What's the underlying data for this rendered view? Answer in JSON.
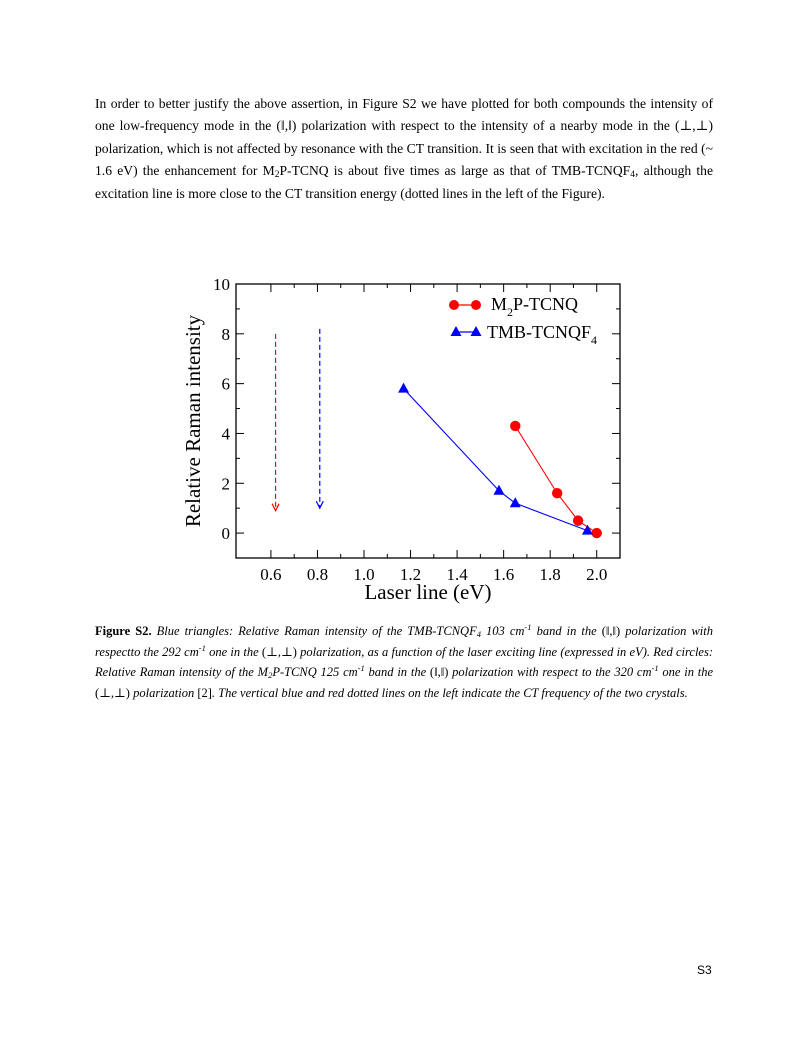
{
  "paragraph": {
    "p1": "In order to better justify the above assertion, in Figure S2 we have plotted for both compounds the intensity of one low-frequency mode in the (‖,‖) polarization with respect to the intensity of a nearby mode in the (⊥,⊥) polarization,  which is not affected by resonance with the CT transition. It is seen that with excitation in the red (~ 1.6 eV) the enhancement for M",
    "p1_sub": "2",
    "p2": "P-TCNQ is about five times as large as that of TMB-TCNQF",
    "p2_sub": "4",
    "p3": ", although the excitation line is more close to the CT transition energy (dotted lines in the left of the Figure)."
  },
  "chart_data": {
    "type": "line",
    "xlabel": "Laser line (eV)",
    "ylabel": "Relative Raman intensity",
    "xlim": [
      0.45,
      2.1
    ],
    "ylim": [
      -1,
      10
    ],
    "xticks": [
      "0.6",
      "0.8",
      "1.0",
      "1.2",
      "1.4",
      "1.6",
      "1.8",
      "2.0"
    ],
    "yticks": [
      "0",
      "2",
      "4",
      "6",
      "8",
      "10"
    ],
    "xtick_values": [
      0.6,
      0.8,
      1.0,
      1.2,
      1.4,
      1.6,
      1.8,
      2.0
    ],
    "ytick_values": [
      0,
      2,
      4,
      6,
      8,
      10
    ],
    "legend_position": "top-right",
    "series": [
      {
        "name_main": "M",
        "name_sub": "2",
        "name_rest": "P-TCNQ",
        "marker": "circle",
        "color": "#ff0000",
        "line_color": "#ff0000",
        "x": [
          1.65,
          1.83,
          1.92,
          2.0
        ],
        "y": [
          4.3,
          1.6,
          0.5,
          0.0
        ]
      },
      {
        "name_main": "TMB-TCNQF",
        "name_sub": "4",
        "name_rest": "",
        "marker": "triangle",
        "color": "#0000ff",
        "line_color": "#0000ff",
        "x": [
          1.17,
          1.58,
          1.65,
          1.96
        ],
        "y": [
          5.8,
          1.7,
          1.2,
          0.1
        ]
      }
    ],
    "ct_arrows": [
      {
        "x": 0.62,
        "y_from": 8.0,
        "y_to": 0.9,
        "color": "#ff0000"
      },
      {
        "x": 0.81,
        "y_from": 8.2,
        "y_to": 1.0,
        "color": "#0000ff"
      }
    ]
  },
  "caption": {
    "label": "Figure S2.",
    "t1": " Blue triangles: Relative Raman intensity of the TMB-TCNQF",
    "t1_sub": "4",
    "t2": " 103 cm",
    "t2_sup": "-1",
    "t3": " band in the ",
    "t3_pol": "(‖,‖)",
    "t4": " polarization with respectto the 292 cm",
    "t4_sup": "-1",
    "t5": " one in the ",
    "t5_pol": "(⊥,⊥)",
    "t6": " polarization, as a function of the laser exciting line (expressed in eV). Red circles: Relative Raman intensity of the M",
    "t6_sub": "2",
    "t7": "P-TCNQ 125 cm",
    "t7_sup": "-1",
    "t8": " band in the ",
    "t8_pol": "(‖,‖)",
    "t9": " polarization with respect to the 320 cm",
    "t9_sup": "-1",
    "t10": " one in the ",
    "t10_pol": "(⊥,⊥)",
    "t11": " polarization ",
    "t11_ref": "[2]",
    "t12": ". The vertical blue and red dotted lines on the left indicate the CT frequency of the two crystals."
  },
  "page_number": "S3"
}
